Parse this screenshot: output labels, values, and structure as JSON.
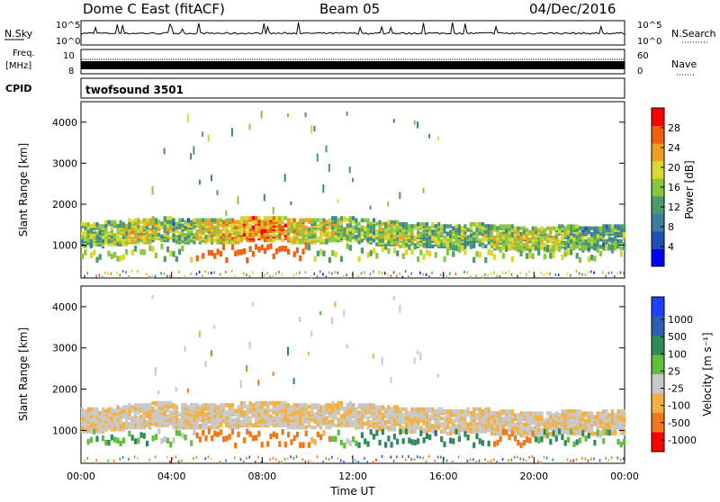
{
  "header": {
    "station": "Dome C East (fitACF)",
    "beam": "Beam 05",
    "date": "04/Dec/2016"
  },
  "top_panels": {
    "nsky_label": "N.Sky",
    "nsky_tick_top": "10^5",
    "nsky_tick_bottom": "10^0",
    "nsearch_label": "N.Search",
    "nsearch_tick_top": "10^5",
    "nsearch_tick_bottom": "10^0",
    "freq_label_line1": "Freq.",
    "freq_label_line2": "[MHz]",
    "freq_tick_top": "10",
    "freq_tick_bottom": "8",
    "nave_label": "Nave",
    "nave_tick_top": "60",
    "nave_tick_bottom": "0",
    "cpid_label": "CPID",
    "cpid_value": "twofsound 3501"
  },
  "colors": {
    "power_scale": [
      "#0000ff",
      "#1f4fb4",
      "#3a7fa0",
      "#4d9a6a",
      "#88c640",
      "#d8d830",
      "#f0a020",
      "#f06010",
      "#ff0000"
    ],
    "velocity_scale": [
      "#2040ff",
      "#2d5fb0",
      "#2e8a5a",
      "#5ec03a",
      "#c8c8c8",
      "#f4b040",
      "#f07818",
      "#ff0000"
    ]
  },
  "chart_data": [
    {
      "type": "heatmap",
      "name": "power",
      "ylabel": "Slant Range [km]",
      "xlabel": "",
      "ylim": [
        200,
        4500
      ],
      "yticks": [
        "1000",
        "2000",
        "3000",
        "4000"
      ],
      "xlim": [
        "00:00",
        "24:00"
      ],
      "colorbar_label": "Power [dB]",
      "colorbar_ticks": [
        "4",
        "8",
        "12",
        "16",
        "20",
        "24",
        "28"
      ],
      "x": [
        0,
        1,
        2,
        3,
        4,
        5,
        6,
        7,
        8,
        9,
        10,
        11,
        12,
        13,
        14,
        15,
        16,
        17,
        18,
        19,
        20,
        21,
        22,
        23
      ],
      "band_center_km": [
        1300,
        1350,
        1400,
        1450,
        1400,
        1400,
        1400,
        1450,
        1450,
        1400,
        1400,
        1450,
        1400,
        1350,
        1300,
        1300,
        1250,
        1300,
        1250,
        1200,
        1200,
        1250,
        1200,
        1250
      ],
      "band_power_db": [
        16,
        18,
        20,
        18,
        14,
        20,
        24,
        26,
        26,
        22,
        20,
        18,
        16,
        18,
        18,
        16,
        16,
        16,
        18,
        20,
        18,
        16,
        14,
        14
      ]
    },
    {
      "type": "heatmap",
      "name": "velocity",
      "ylabel": "Slant Range [km]",
      "xlabel": "Time UT",
      "ylim": [
        200,
        4500
      ],
      "yticks": [
        "1000",
        "2000",
        "3000",
        "4000"
      ],
      "xlim": [
        "00:00",
        "24:00"
      ],
      "xticks": [
        "00:00",
        "04:00",
        "08:00",
        "12:00",
        "16:00",
        "20:00",
        "00:00"
      ],
      "colorbar_label": "Velocity [m s⁻¹]",
      "colorbar_ticks": [
        "1000",
        "500",
        "100",
        "25",
        "-25",
        "-100",
        "-500",
        "-1000"
      ],
      "x": [
        0,
        1,
        2,
        3,
        4,
        5,
        6,
        7,
        8,
        9,
        10,
        11,
        12,
        13,
        14,
        15,
        16,
        17,
        18,
        19,
        20,
        21,
        22,
        23
      ],
      "band_velocity_ms": [
        -20,
        -20,
        -20,
        -15,
        -20,
        -20,
        -20,
        -20,
        -20,
        -20,
        -20,
        -20,
        -20,
        -20,
        -20,
        -20,
        -20,
        -20,
        -20,
        -20,
        -20,
        -20,
        -20,
        -20
      ],
      "low_band_velocity_ms": [
        80,
        90,
        100,
        60,
        40,
        -300,
        -400,
        -450,
        -400,
        -200,
        -100,
        50,
        150,
        200,
        250,
        250,
        200,
        150,
        -200,
        -300,
        150,
        120,
        100,
        90
      ]
    }
  ]
}
